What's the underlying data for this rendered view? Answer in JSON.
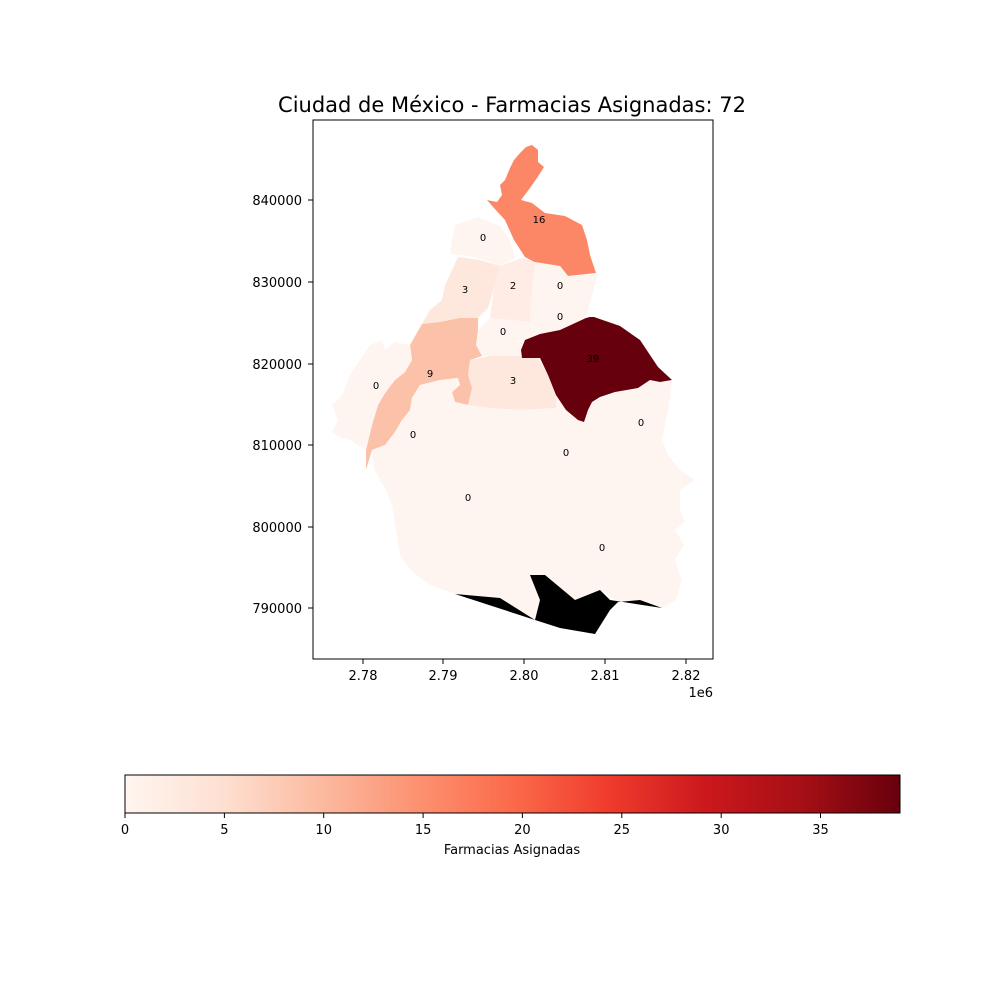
{
  "chart_data": {
    "type": "choropleth",
    "title": "Ciudad de México  - Farmacias Asignadas: 72",
    "x_ticks": [
      "2.78",
      "2.79",
      "2.80",
      "2.81",
      "2.82"
    ],
    "x_offset_label": "1e6",
    "y_ticks": [
      "790000",
      "800000",
      "810000",
      "820000",
      "830000",
      "840000"
    ],
    "colorbar": {
      "label": "Farmacias Asignadas",
      "ticks": [
        "0",
        "5",
        "10",
        "15",
        "20",
        "25",
        "30",
        "35"
      ],
      "min": 0,
      "max": 39,
      "colormap": "Reds"
    },
    "regions": [
      {
        "value": 16
      },
      {
        "value": 0
      },
      {
        "value": 3
      },
      {
        "value": 2
      },
      {
        "value": 0
      },
      {
        "value": 0
      },
      {
        "value": 0
      },
      {
        "value": 39
      },
      {
        "value": 9
      },
      {
        "value": 3
      },
      {
        "value": 0
      },
      {
        "value": 0
      },
      {
        "value": 0
      },
      {
        "value": 0
      },
      {
        "value": 0
      },
      {
        "value": 0
      }
    ]
  }
}
